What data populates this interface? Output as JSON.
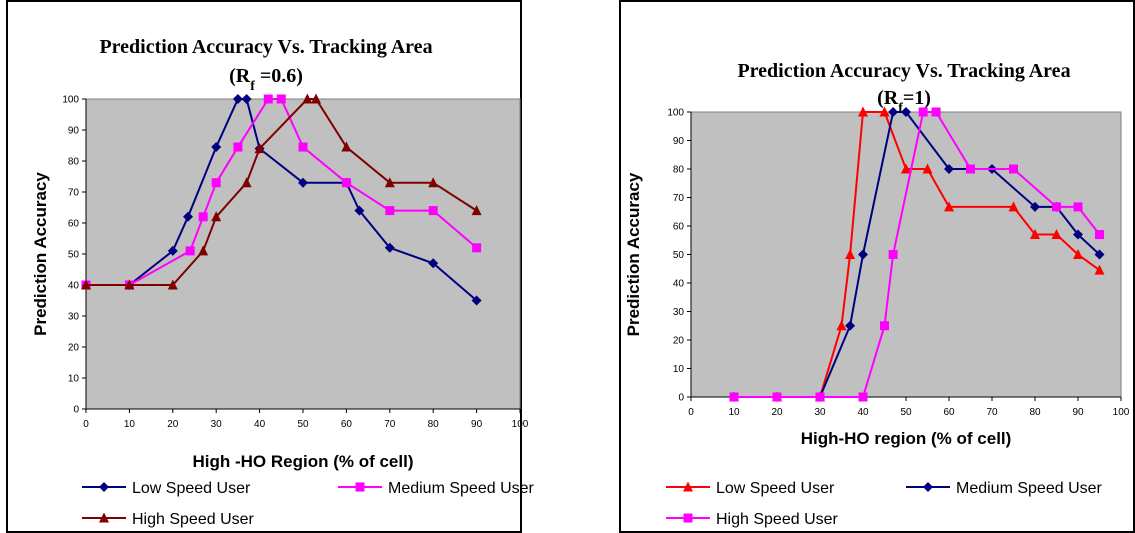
{
  "chart_data": [
    {
      "type": "line",
      "title": "Prediction Accuracy Vs. Tracking Area",
      "subtitle_prefix": "(R",
      "subtitle_sub": "f",
      "subtitle_suffix": " =0.6)",
      "xlabel": "High -HO Region (% of cell)",
      "ylabel": "Prediction Accuracy",
      "xlim": [
        0,
        100
      ],
      "ylim": [
        0,
        100
      ],
      "x_ticks": [
        0,
        10,
        20,
        30,
        40,
        50,
        60,
        70,
        80,
        90,
        100
      ],
      "y_ticks": [
        0,
        10,
        20,
        30,
        40,
        50,
        60,
        70,
        80,
        90,
        100
      ],
      "plot_background": "#c0c0c0",
      "legend_position": "bottom",
      "series": [
        {
          "name": "Low Speed User",
          "color": "#000080",
          "marker": "diamond",
          "x": [
            0,
            10,
            20,
            23.5,
            30,
            35,
            37,
            40,
            50,
            60,
            63,
            70,
            80,
            90
          ],
          "y": [
            40,
            40,
            51,
            62,
            84.5,
            100,
            100,
            84,
            73,
            73,
            64,
            52,
            47,
            35
          ]
        },
        {
          "name": "Medium Speed User",
          "color": "#ff00ff",
          "marker": "square",
          "x": [
            0,
            10,
            24,
            27,
            30,
            35,
            42,
            45,
            50,
            60,
            70,
            80,
            90
          ],
          "y": [
            40,
            40,
            51,
            62,
            73,
            84.5,
            100,
            100,
            84.5,
            73,
            64,
            64,
            52
          ]
        },
        {
          "name": "High Speed User",
          "color": "#800000",
          "marker": "triangle",
          "x": [
            0,
            10,
            20,
            27,
            30,
            37,
            40,
            51,
            53,
            60,
            70,
            80,
            90
          ],
          "y": [
            40,
            40,
            40,
            51,
            62,
            73,
            84,
            100,
            100,
            84.5,
            73,
            73,
            64
          ]
        }
      ]
    },
    {
      "type": "line",
      "title": "Prediction Accuracy Vs. Tracking Area",
      "subtitle_prefix": "(R",
      "subtitle_sub": "f",
      "subtitle_suffix": "=1)",
      "xlabel": "High-HO region (% of cell)",
      "ylabel": "Prediction Accuracy",
      "xlim": [
        0,
        100
      ],
      "ylim": [
        0,
        100
      ],
      "x_ticks": [
        0,
        10,
        20,
        30,
        40,
        50,
        60,
        70,
        80,
        90,
        100
      ],
      "y_ticks": [
        0,
        10,
        20,
        30,
        40,
        50,
        60,
        70,
        80,
        90,
        100
      ],
      "plot_background": "#c0c0c0",
      "legend_position": "bottom",
      "series": [
        {
          "name": "Low Speed User",
          "color": "#ff0000",
          "marker": "triangle",
          "x": [
            10,
            20,
            30,
            35,
            37,
            40,
            45,
            50,
            55,
            60,
            75,
            80,
            85,
            90,
            95
          ],
          "y": [
            0,
            0,
            0,
            25,
            50,
            100,
            100,
            80,
            80,
            66.7,
            66.7,
            57,
            57,
            50,
            44.5
          ]
        },
        {
          "name": "Medium Speed User",
          "color": "#000080",
          "marker": "diamond",
          "x": [
            10,
            20,
            30,
            37,
            40,
            47,
            50,
            60,
            70,
            80,
            85,
            90,
            95
          ],
          "y": [
            0,
            0,
            0,
            25,
            50,
            100,
            100,
            80,
            80,
            66.7,
            66.7,
            57,
            50
          ]
        },
        {
          "name": "High Speed User",
          "color": "#ff00ff",
          "marker": "square",
          "x": [
            10,
            20,
            30,
            40,
            45,
            47,
            54,
            57,
            65,
            75,
            85,
            90,
            95
          ],
          "y": [
            0,
            0,
            0,
            0,
            25,
            50,
            100,
            100,
            80,
            80,
            66.7,
            66.7,
            57
          ]
        }
      ]
    }
  ]
}
